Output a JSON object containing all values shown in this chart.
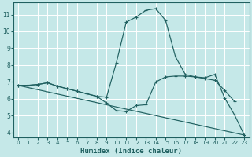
{
  "xlabel": "Humidex (Indice chaleur)",
  "xlim": [
    -0.5,
    23.5
  ],
  "ylim": [
    3.7,
    11.7
  ],
  "yticks": [
    4,
    5,
    6,
    7,
    8,
    9,
    10,
    11
  ],
  "xticks": [
    0,
    1,
    2,
    3,
    4,
    5,
    6,
    7,
    8,
    9,
    10,
    11,
    12,
    13,
    14,
    15,
    16,
    17,
    18,
    19,
    20,
    21,
    22,
    23
  ],
  "bg_color": "#c5e8e8",
  "grid_color": "#ffffff",
  "line_color": "#206060",
  "line1_x": [
    0,
    1,
    2,
    3,
    4,
    5,
    6,
    7,
    8,
    9,
    10,
    11,
    12,
    13,
    14,
    15,
    16,
    17,
    18,
    19,
    20,
    21,
    22,
    23
  ],
  "line1_y": [
    6.8,
    6.8,
    6.85,
    6.95,
    6.75,
    6.6,
    6.45,
    6.3,
    6.15,
    5.75,
    5.3,
    5.25,
    5.6,
    5.65,
    7.0,
    7.3,
    7.35,
    7.35,
    7.3,
    7.25,
    7.45,
    6.05,
    5.05,
    3.85
  ],
  "line2_x": [
    0,
    1,
    2,
    3,
    4,
    5,
    6,
    7,
    8,
    9,
    10,
    11,
    12,
    13,
    14,
    15,
    16,
    17,
    18,
    19,
    20,
    21,
    22
  ],
  "line2_y": [
    6.8,
    6.8,
    6.85,
    6.95,
    6.75,
    6.6,
    6.45,
    6.3,
    6.15,
    6.1,
    8.15,
    10.55,
    10.85,
    11.25,
    11.35,
    10.65,
    8.5,
    7.45,
    7.3,
    7.2,
    7.1,
    6.5,
    5.85
  ],
  "line3_x": [
    0,
    23
  ],
  "line3_y": [
    6.8,
    3.85
  ]
}
